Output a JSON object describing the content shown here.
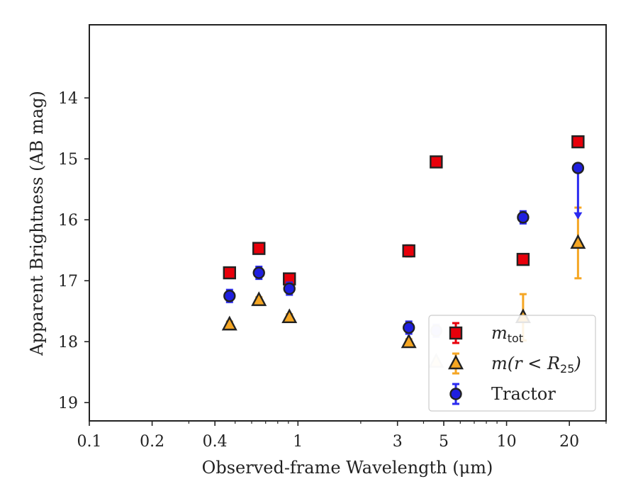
{
  "chart_data": {
    "type": "scatter",
    "xlabel": "Observed-frame Wavelength (μm)",
    "ylabel": "Apparent Brightness (AB mag)",
    "x_scale": "log",
    "xlim": [
      0.1,
      30
    ],
    "ylim": [
      19.3,
      12.8
    ],
    "y_inverted": true,
    "x_ticks": [
      {
        "value": 0.1,
        "label": "0.1"
      },
      {
        "value": 0.2,
        "label": "0.2"
      },
      {
        "value": 0.4,
        "label": "0.4"
      },
      {
        "value": 1,
        "label": "1"
      },
      {
        "value": 3,
        "label": "3"
      },
      {
        "value": 5,
        "label": "5"
      },
      {
        "value": 10,
        "label": "10"
      },
      {
        "value": 20,
        "label": "20"
      }
    ],
    "y_ticks": [
      {
        "value": 14,
        "label": "14"
      },
      {
        "value": 15,
        "label": "15"
      },
      {
        "value": 16,
        "label": "16"
      },
      {
        "value": 17,
        "label": "17"
      },
      {
        "value": 18,
        "label": "18"
      },
      {
        "value": 19,
        "label": "19"
      }
    ],
    "grid": false,
    "legend_position": "bottom-right",
    "series": [
      {
        "name": "m_tot",
        "legend_main": "m",
        "legend_sub": "tot",
        "marker": "square",
        "color": "#e8000b",
        "err_color": "#e8000b",
        "points": [
          {
            "x": 0.47,
            "y": 16.87,
            "err": 0.08
          },
          {
            "x": 0.65,
            "y": 16.47,
            "err": 0.07
          },
          {
            "x": 0.91,
            "y": 16.97,
            "err": 0.08
          },
          {
            "x": 3.4,
            "y": 16.51,
            "err": 0.09
          },
          {
            "x": 4.6,
            "y": 15.05,
            "err": 0.08
          },
          {
            "x": 12.0,
            "y": 16.65,
            "err": 0.07
          },
          {
            "x": 22.0,
            "y": 14.72,
            "err": 0.06
          }
        ]
      },
      {
        "name": "m(r < R25)",
        "legend_main": "m(r < R",
        "legend_sub": "25",
        "legend_close": ")",
        "marker": "triangle",
        "color": "#f5a623",
        "err_color": "#f5a623",
        "points": [
          {
            "x": 0.47,
            "y": 17.72,
            "err": 0.05
          },
          {
            "x": 0.65,
            "y": 17.32,
            "err": 0.05
          },
          {
            "x": 0.91,
            "y": 17.6,
            "err": 0.05
          },
          {
            "x": 3.4,
            "y": 18.01,
            "err": 0.05
          },
          {
            "x": 4.6,
            "y": 18.33,
            "err": 0.05,
            "faded": true
          },
          {
            "x": 12.0,
            "y": 17.6,
            "err": 0.38
          },
          {
            "x": 22.0,
            "y": 16.38,
            "err": 0.58
          }
        ]
      },
      {
        "name": "Tractor",
        "legend_main": "Tractor",
        "marker": "circle",
        "color": "#1f1fe0",
        "err_color": "#2a2af0",
        "points": [
          {
            "x": 0.47,
            "y": 17.25,
            "err": 0.1
          },
          {
            "x": 0.65,
            "y": 16.87,
            "err": 0.1
          },
          {
            "x": 0.91,
            "y": 17.13,
            "err": 0.1
          },
          {
            "x": 3.4,
            "y": 17.77,
            "err": 0.1
          },
          {
            "x": 4.6,
            "y": 17.82,
            "err": 0.1,
            "faded": true
          },
          {
            "x": 12.0,
            "y": 15.96,
            "err": 0.1
          },
          {
            "x": 22.0,
            "y": 15.15,
            "upper_limit": true,
            "limit_to": 15.97
          }
        ]
      }
    ]
  }
}
